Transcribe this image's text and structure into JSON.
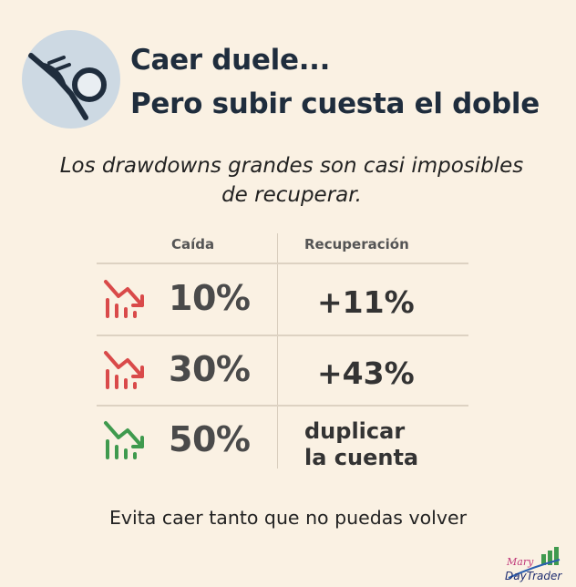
{
  "title": {
    "line1": "Caer duele...",
    "line2": "Pero subir cuesta el doble"
  },
  "subtitle": "Los drawdowns grandes son casi imposibles de recuperar.",
  "table": {
    "headers": [
      "Caída",
      "Recuperación"
    ],
    "rows": [
      {
        "drop": "10%",
        "recovery": "+11%",
        "icon": "chart-down-icon",
        "color": "#d94a4a"
      },
      {
        "drop": "30%",
        "recovery": "+43%",
        "icon": "chart-down-icon",
        "color": "#d94a4a"
      },
      {
        "drop": "50%",
        "recovery_line1": "duplicar",
        "recovery_line2": "la cuenta",
        "icon": "chart-down-icon",
        "color": "#3f9a4e"
      }
    ]
  },
  "footer": "Evita caer tanto que no puedas volver",
  "brand": {
    "line1": "Mary",
    "line2": "DayTrader"
  },
  "colors": {
    "background": "#faf1e3",
    "title": "#1f2d3d",
    "red": "#d94a4a",
    "green": "#3f9a4e"
  },
  "logo_icon": "falling-figure-icon"
}
